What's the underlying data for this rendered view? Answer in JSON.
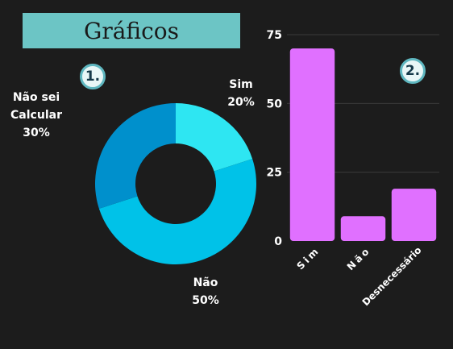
{
  "header": {
    "title": "Gráficos"
  },
  "badges": {
    "first": "1.",
    "second": "2."
  },
  "chart_data": [
    {
      "type": "pie",
      "style": "donut",
      "slices": [
        {
          "label": "Sim",
          "value": 20,
          "value_label": "20%",
          "color": "#2ee6f2"
        },
        {
          "label": "Não",
          "value": 50,
          "value_label": "50%",
          "color": "#00c2e8"
        },
        {
          "label": "Não sei Calcular",
          "value": 30,
          "value_label": "30%",
          "color": "#0090cc"
        }
      ]
    },
    {
      "type": "bar",
      "categories": [
        "Sim",
        "Não",
        "Desnecessário"
      ],
      "values": [
        70,
        9,
        19
      ],
      "ylim": [
        0,
        75
      ],
      "yticks": [
        0,
        25,
        50,
        75
      ],
      "bar_color": "#e070ff",
      "grid": true
    }
  ]
}
